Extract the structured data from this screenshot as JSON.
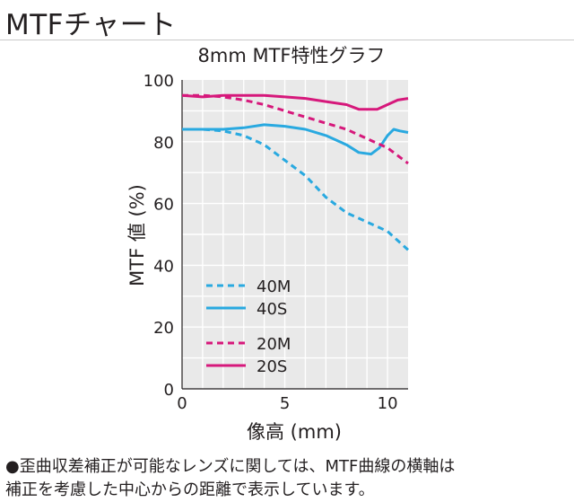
{
  "page": {
    "heading": "MTFチャート",
    "footnote_line1": "●歪曲収差補正が可能なレンズに関しては、MTF曲線の横軸は",
    "footnote_line2": "補正を考慮した中心からの距離で表示しています。"
  },
  "chart_data": {
    "type": "line",
    "title": "8mm MTF特性グラフ",
    "xlabel": "像高 (mm)",
    "ylabel": "MTF 値 (%)",
    "xlim": [
      0,
      11
    ],
    "ylim": [
      0,
      100
    ],
    "xticks": [
      0,
      5,
      10
    ],
    "yticks": [
      0,
      20,
      40,
      60,
      80,
      100
    ],
    "grid": true,
    "legend_position": "center-left",
    "background_color": "#e9e9e9",
    "series": [
      {
        "name": "40M",
        "color": "#29a9e0",
        "style": "dashed",
        "points": [
          [
            0,
            84
          ],
          [
            1,
            84
          ],
          [
            2,
            83.5
          ],
          [
            3,
            82
          ],
          [
            4,
            79
          ],
          [
            5,
            74
          ],
          [
            6,
            69
          ],
          [
            7,
            62
          ],
          [
            8,
            57
          ],
          [
            9,
            54
          ],
          [
            10,
            51
          ],
          [
            10.5,
            48
          ],
          [
            11,
            45
          ]
        ]
      },
      {
        "name": "40S",
        "color": "#29a9e0",
        "style": "solid",
        "points": [
          [
            0,
            84
          ],
          [
            1,
            84
          ],
          [
            2,
            84
          ],
          [
            3,
            84.5
          ],
          [
            4,
            85.5
          ],
          [
            5,
            85
          ],
          [
            6,
            84
          ],
          [
            7,
            82
          ],
          [
            8,
            79
          ],
          [
            8.6,
            76.5
          ],
          [
            9.2,
            76
          ],
          [
            9.6,
            78
          ],
          [
            10,
            82
          ],
          [
            10.3,
            84
          ],
          [
            10.6,
            83.5
          ],
          [
            11,
            83
          ]
        ]
      },
      {
        "name": "20M",
        "color": "#d6187b",
        "style": "dashed",
        "points": [
          [
            0,
            95
          ],
          [
            1,
            95
          ],
          [
            2,
            94.5
          ],
          [
            3,
            93.5
          ],
          [
            4,
            92
          ],
          [
            5,
            90
          ],
          [
            6,
            88
          ],
          [
            7,
            86
          ],
          [
            8,
            84
          ],
          [
            9,
            81
          ],
          [
            10,
            78
          ],
          [
            11,
            73
          ]
        ]
      },
      {
        "name": "20S",
        "color": "#d6187b",
        "style": "solid",
        "points": [
          [
            0,
            95
          ],
          [
            1,
            94.5
          ],
          [
            2,
            95
          ],
          [
            3,
            95
          ],
          [
            4,
            95
          ],
          [
            5,
            94.5
          ],
          [
            6,
            94
          ],
          [
            7,
            93
          ],
          [
            8,
            92
          ],
          [
            8.6,
            90.5
          ],
          [
            9.5,
            90.5
          ],
          [
            10,
            92
          ],
          [
            10.5,
            93.5
          ],
          [
            11,
            94
          ]
        ]
      }
    ]
  }
}
